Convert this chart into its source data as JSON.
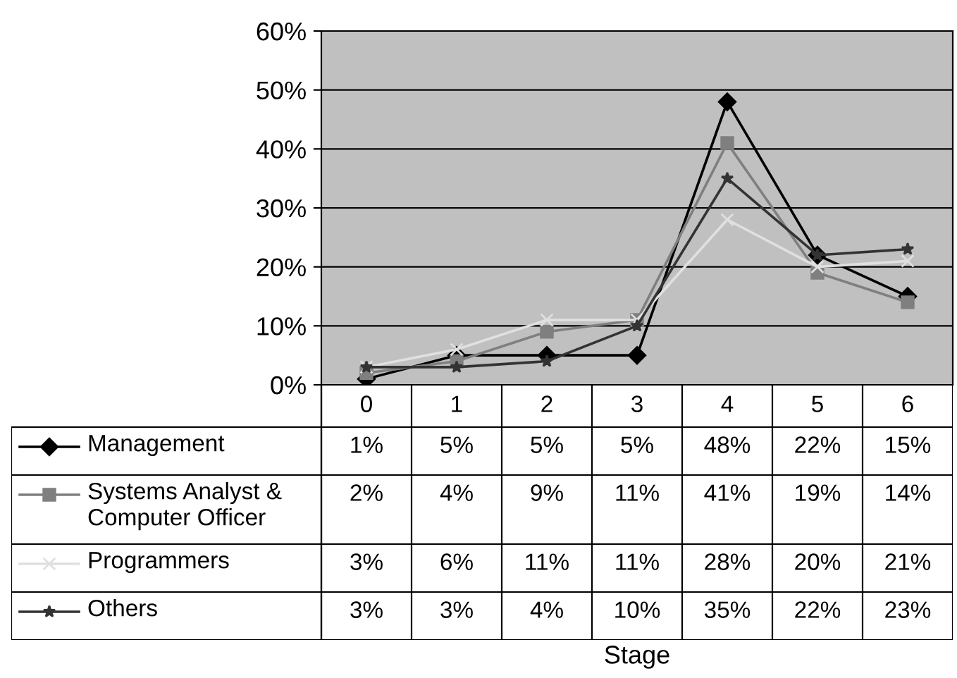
{
  "chart_data": {
    "type": "line",
    "annotations": [
      "Stage"
    ],
    "categories": [
      "0",
      "1",
      "2",
      "3",
      "4",
      "5",
      "6"
    ],
    "ylim": [
      0,
      60
    ],
    "yticks": [
      {
        "value": 0,
        "label": "0%"
      },
      {
        "value": 10,
        "label": "10%"
      },
      {
        "value": 20,
        "label": "20%"
      },
      {
        "value": 30,
        "label": "30%"
      },
      {
        "value": 40,
        "label": "40%"
      },
      {
        "value": 50,
        "label": "50%"
      },
      {
        "value": 60,
        "label": "60%"
      }
    ],
    "grid": "y",
    "legend": "bottom",
    "series": [
      {
        "name": "Management",
        "color": "#000000",
        "marker": "diamond",
        "values": [
          1,
          5,
          5,
          5,
          48,
          22,
          15
        ],
        "value_labels": [
          "1%",
          "5%",
          "5%",
          "5%",
          "48%",
          "22%",
          "15%"
        ]
      },
      {
        "name": "Systems Analyst &\nComputer Officer",
        "color": "#7f7f7f",
        "marker": "square",
        "values": [
          2,
          4,
          9,
          11,
          41,
          19,
          14
        ],
        "value_labels": [
          "2%",
          "4%",
          "9%",
          "11%",
          "41%",
          "19%",
          "14%"
        ]
      },
      {
        "name": "Programmers",
        "color": "#e0e0e0",
        "marker": "cross",
        "values": [
          3,
          6,
          11,
          11,
          28,
          20,
          21
        ],
        "value_labels": [
          "3%",
          "6%",
          "11%",
          "11%",
          "28%",
          "20%",
          "21%"
        ]
      },
      {
        "name": "Others",
        "color": "#333333",
        "marker": "star",
        "values": [
          3,
          3,
          4,
          10,
          35,
          22,
          23
        ],
        "value_labels": [
          "3%",
          "3%",
          "4%",
          "10%",
          "35%",
          "22%",
          "23%"
        ]
      }
    ]
  }
}
